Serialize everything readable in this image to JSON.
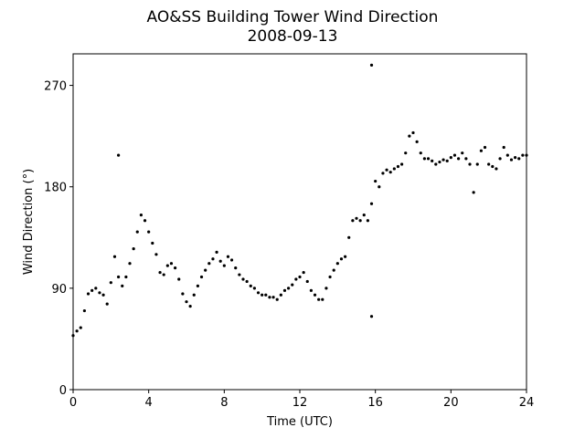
{
  "chart_data": {
    "type": "scatter",
    "title": "AO&SS Building Tower Wind Direction",
    "subtitle": "2008-09-13",
    "xlabel": "Time (UTC)",
    "ylabel": "Wind Direction (°)",
    "color": "#000000",
    "xlim": [
      0,
      24
    ],
    "xticks": [
      0,
      4,
      8,
      12,
      16,
      20,
      24
    ],
    "ylim": [
      0,
      298
    ],
    "yticks": [
      0,
      90,
      180,
      270
    ],
    "x": [
      0,
      0.2,
      0.4,
      0.6,
      0.8,
      1,
      1.2,
      1.4,
      1.6,
      1.8,
      2,
      2.2,
      2.4,
      2.6,
      2.8,
      3,
      3.2,
      3.4,
      3.6,
      3.8,
      4,
      4.2,
      4.4,
      4.6,
      4.8,
      5,
      5.2,
      5.4,
      5.6,
      5.8,
      6,
      6.2,
      6.4,
      6.6,
      6.8,
      7,
      7.2,
      7.4,
      7.6,
      7.8,
      8,
      8.2,
      8.4,
      8.6,
      8.8,
      9,
      9.2,
      9.4,
      9.6,
      9.8,
      10,
      10.2,
      10.4,
      10.6,
      10.8,
      11,
      11.2,
      11.4,
      11.6,
      11.8,
      12,
      12.2,
      12.4,
      12.6,
      12.8,
      13,
      13.2,
      13.4,
      13.6,
      13.8,
      14,
      14.2,
      14.4,
      14.6,
      14.8,
      15,
      15.2,
      15.4,
      15.6,
      15.8,
      16,
      16.2,
      16.4,
      16.6,
      16.8,
      17,
      17.2,
      17.4,
      17.6,
      17.8,
      18,
      18.2,
      18.4,
      18.6,
      18.8,
      19,
      19.2,
      19.4,
      19.6,
      19.8,
      20,
      20.2,
      20.4,
      20.6,
      20.8,
      21,
      21.2,
      21.4,
      21.6,
      21.8,
      22,
      22.2,
      22.4,
      22.6,
      22.8,
      23,
      23.2,
      23.4,
      23.6,
      23.8,
      24,
      2.4,
      15.8,
      15.8
    ],
    "values": [
      48,
      52,
      55,
      70,
      85,
      88,
      90,
      86,
      84,
      76,
      95,
      118,
      100,
      92,
      100,
      112,
      125,
      140,
      155,
      150,
      140,
      130,
      120,
      104,
      102,
      110,
      112,
      108,
      98,
      85,
      78,
      74,
      84,
      92,
      100,
      106,
      112,
      116,
      122,
      114,
      110,
      118,
      115,
      108,
      102,
      98,
      96,
      92,
      90,
      86,
      84,
      84,
      82,
      82,
      80,
      84,
      88,
      90,
      93,
      98,
      100,
      104,
      96,
      88,
      84,
      80,
      80,
      90,
      100,
      106,
      112,
      116,
      118,
      135,
      150,
      152,
      150,
      155,
      150,
      165,
      185,
      180,
      192,
      195,
      193,
      196,
      198,
      200,
      210,
      225,
      228,
      220,
      210,
      205,
      205,
      203,
      200,
      202,
      204,
      203,
      206,
      208,
      205,
      210,
      205,
      200,
      175,
      200,
      212,
      215,
      200,
      198,
      196,
      205,
      215,
      208,
      204,
      206,
      205,
      208,
      208,
      208,
      288,
      65
    ]
  }
}
